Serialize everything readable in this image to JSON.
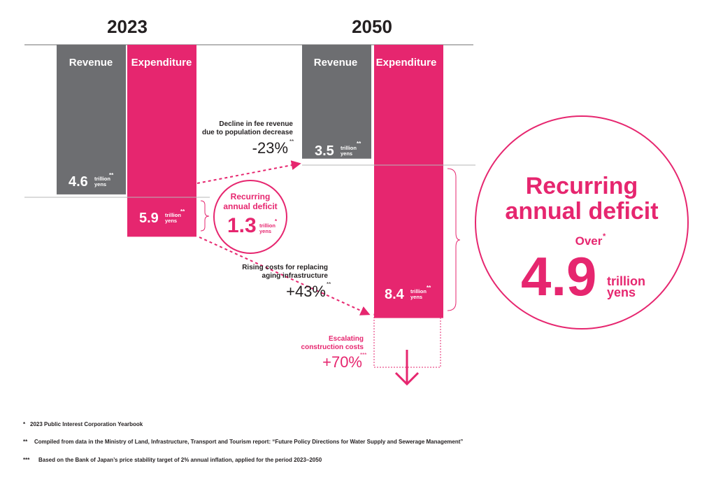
{
  "chart_data": {
    "type": "bar",
    "categories": [
      "2023",
      "2050"
    ],
    "series": [
      {
        "name": "Revenue",
        "values": [
          4.6,
          3.5
        ],
        "color": "#6d6e71"
      },
      {
        "name": "Expenditure",
        "values": [
          5.9,
          8.4
        ],
        "color": "#e6266f"
      }
    ],
    "unit_line1": "trillion",
    "unit_line2": "yens",
    "value_marks": [
      "**",
      "**",
      "**",
      "**"
    ],
    "deficit_2023": {
      "title_line1": "Recurring",
      "title_line2": "annual deficit",
      "value": "1.3",
      "mark": "*"
    },
    "deficit_2050": {
      "title_line1": "Recurring",
      "title_line2": "annual deficit",
      "prefix": "Over",
      "value": "4.9",
      "unit_line1": "trillion",
      "unit_line2": "yens",
      "mark": "*"
    },
    "annotations": [
      {
        "line1": "Decline in fee revenue",
        "line2": "due to population decrease",
        "value": "-23%",
        "mark": "**"
      },
      {
        "line1": "Rising costs for replacing",
        "line2": "aging infrastructure",
        "value": "+43%",
        "mark": "**"
      },
      {
        "line1": "Escalating",
        "line2": "construction costs",
        "value": "+70%",
        "mark": "***"
      }
    ],
    "footnotes": [
      {
        "mark": "*",
        "text": "2023 Public Interest Corporation Yearbook"
      },
      {
        "mark": "**",
        "text": "Compiled from data in the Ministry of Land, Infrastructure, Transport and Tourism report: “Future Policy Directions for Water Supply and Sewerage Management”"
      },
      {
        "mark": "***",
        "text": "Based on the Bank of Japan’s price stability target of 2% annual inflation, applied for the period 2023–2050"
      }
    ],
    "colors": {
      "revenue": "#6d6e71",
      "expenditure": "#e6266f",
      "text": "#231f20"
    }
  }
}
